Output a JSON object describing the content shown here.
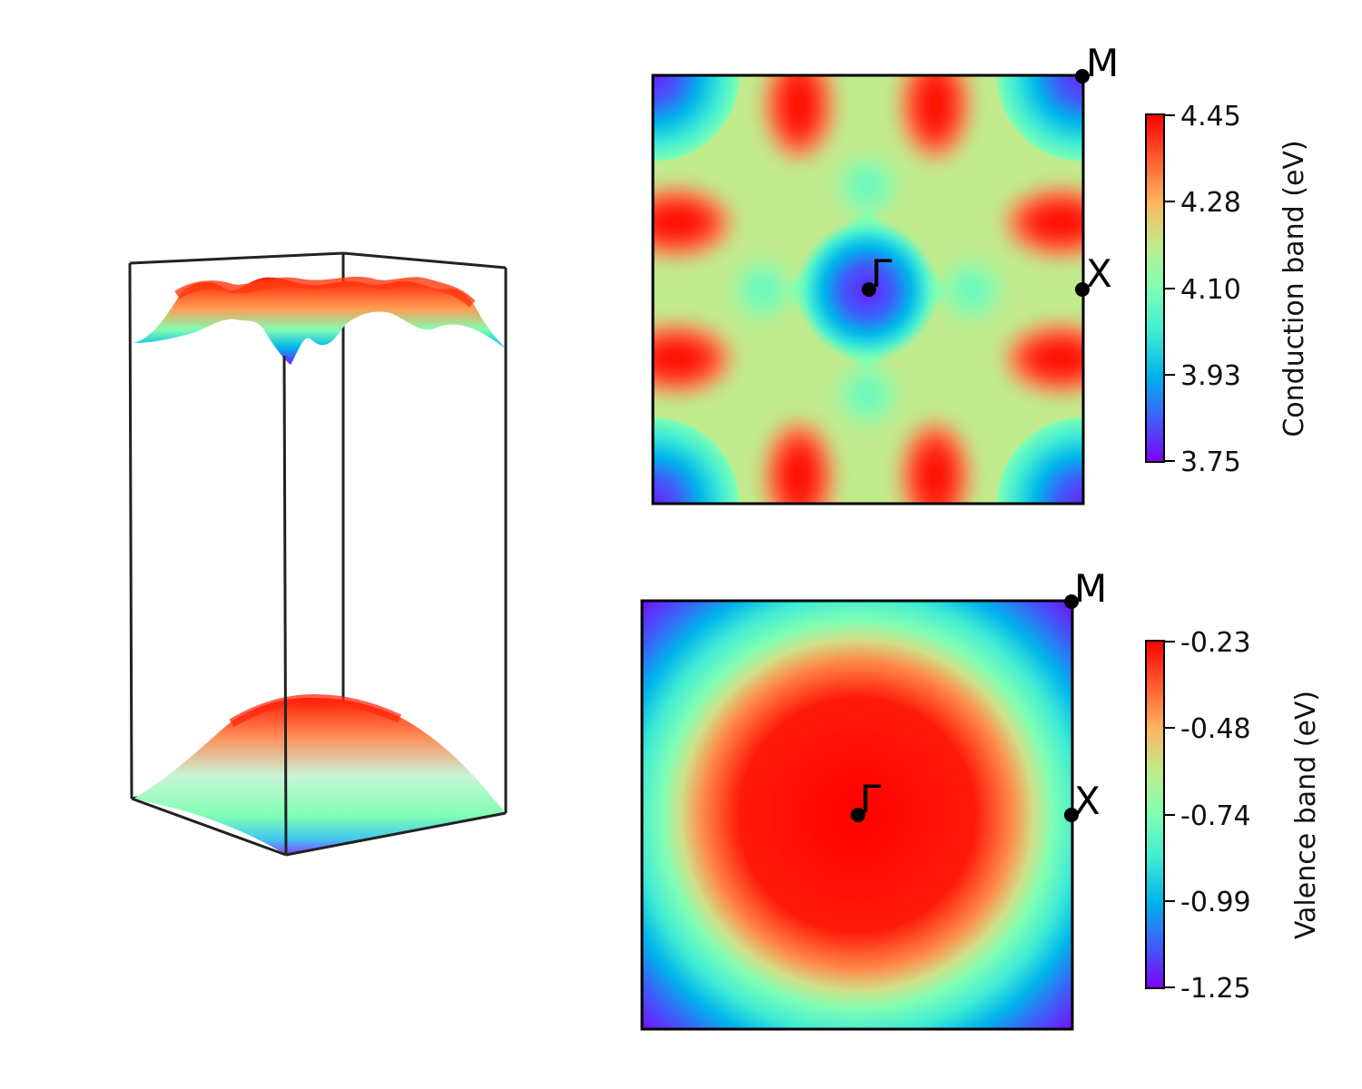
{
  "colors": {
    "colormap": "rainbow",
    "colormap_stops": [
      "#7f00ff",
      "#3e5ef9",
      "#00b5eb",
      "#40ecd4",
      "#80feb3",
      "#c0eb8d",
      "#ffb360",
      "#ff5a2d",
      "#ff0000"
    ],
    "frame": "#000000"
  },
  "chart_data": [
    {
      "type": "surface",
      "panel": "3D band surfaces",
      "surfaces": [
        {
          "band": "conduction",
          "z_range": [
            3.75,
            4.45
          ],
          "shape": "wavy with minimum at Gamma"
        },
        {
          "band": "valence",
          "z_range": [
            -1.25,
            -0.23
          ],
          "shape": "dome with maximum at Gamma"
        }
      ]
    },
    {
      "type": "heatmap",
      "panel": "conduction",
      "colorbar": {
        "label": "Conduction band (eV)",
        "range": [
          3.75,
          4.45
        ],
        "ticks": [
          "4.45",
          "4.28",
          "4.10",
          "3.93",
          "3.75"
        ]
      },
      "kpoints": [
        {
          "label": "M",
          "kx": 0.5,
          "ky": 0.5
        },
        {
          "label": "X",
          "kx": 0.5,
          "ky": 0.0
        },
        {
          "label": "Γ",
          "kx": 0.0,
          "ky": 0.0
        }
      ]
    },
    {
      "type": "heatmap",
      "panel": "valence",
      "colorbar": {
        "label": "Valence band (eV)",
        "range": [
          -1.25,
          -0.23
        ],
        "ticks": [
          "-0.23",
          "-0.48",
          "-0.74",
          "-0.99",
          "-1.25"
        ]
      },
      "kpoints": [
        {
          "label": "M",
          "kx": 0.5,
          "ky": 0.5
        },
        {
          "label": "X",
          "kx": 0.5,
          "ky": 0.0
        },
        {
          "label": "Γ",
          "kx": 0.0,
          "ky": 0.0
        }
      ]
    }
  ]
}
